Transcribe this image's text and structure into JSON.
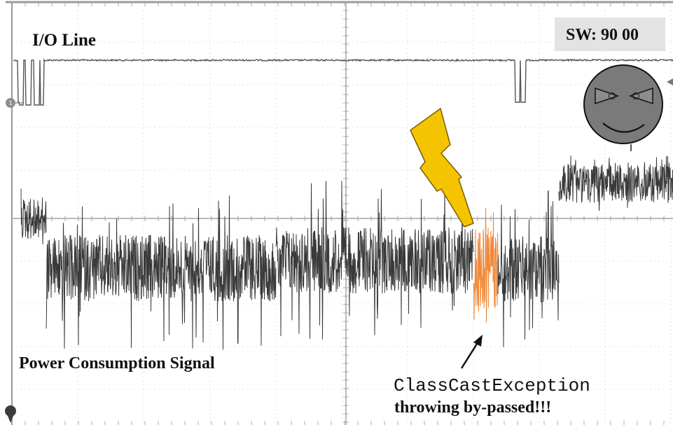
{
  "labels": {
    "io_line": "I/O Line",
    "status_word": "SW: 90 00",
    "power_signal": "Power Consumption Signal",
    "exception_name": "ClassCastException",
    "exception_note": "throwing by-passed!!!"
  },
  "colors": {
    "trace": "#3a3a3a",
    "fault_region": "#f08a3c",
    "lightning": "#f5c400",
    "grid": "#b9b9b9",
    "frame": "#9a9a9a",
    "face": "#7a7a7a"
  },
  "icons": {
    "lightning": "lightning-bolt-icon",
    "face": "evil-face-icon",
    "arrow": "pointer-arrow-icon",
    "marker1": "channel-1-marker-icon",
    "marker2": "channel-2-marker-icon"
  }
}
